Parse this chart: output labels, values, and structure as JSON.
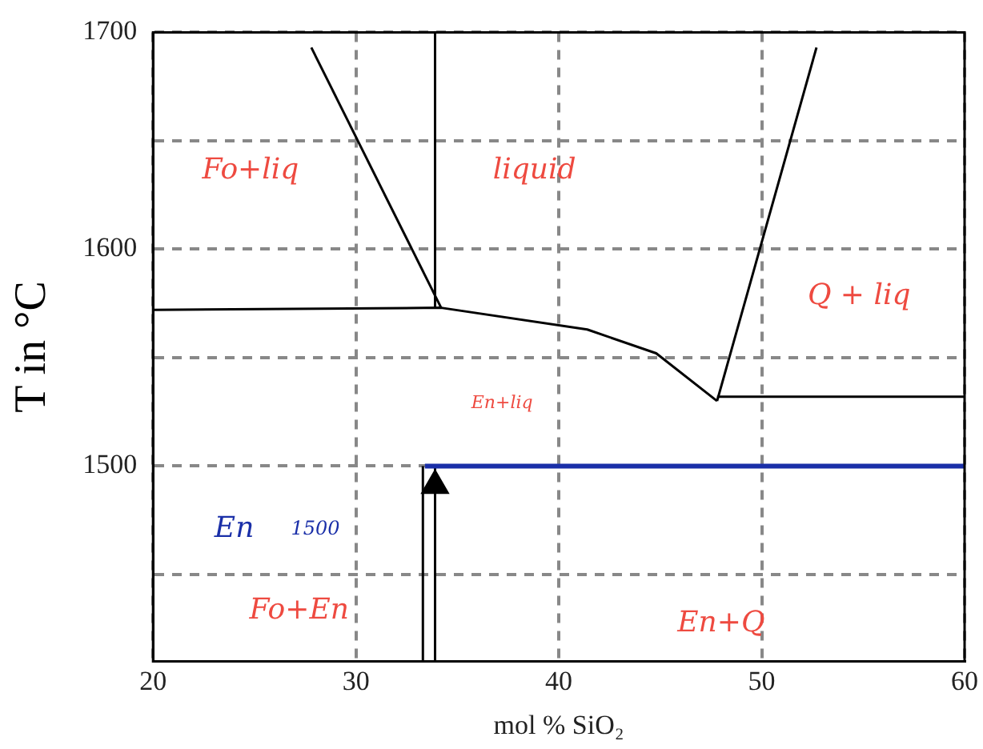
{
  "chart_data": {
    "type": "line",
    "xlabel": "mol % SiO₂",
    "ylabel": "T in °C",
    "xlim": [
      20,
      60
    ],
    "ylim": [
      1410,
      1700
    ],
    "xticks": [
      20,
      30,
      40,
      50,
      60
    ],
    "yticks": [
      {
        "value": 1450,
        "label": null
      },
      1500,
      {
        "value": 1550,
        "label": null
      },
      1600,
      {
        "value": 1650,
        "label": null
      },
      1700
    ],
    "grid": true,
    "legend": false,
    "marker": "none",
    "line_style": "solid",
    "series": [
      {
        "color": "#000000",
        "x": [
          27.8,
          34.2
        ],
        "values": [
          1693,
          1573
        ]
      },
      {
        "color": "#000000",
        "x": [
          33.9,
          33.9
        ],
        "values": [
          1573,
          1700
        ]
      },
      {
        "color": "#000000",
        "x": [
          20,
          34.2,
          41.4,
          44.8,
          47.8
        ],
        "values": [
          1572,
          1573,
          1563,
          1552,
          1530
        ]
      },
      {
        "color": "#000000",
        "x": [
          47.8,
          52.7
        ],
        "values": [
          1530,
          1693
        ]
      },
      {
        "color": "#000000",
        "x": [
          47.8,
          60
        ],
        "values": [
          1532,
          1532
        ]
      },
      {
        "color": "#1a2fa8",
        "x": [
          33.4,
          60
        ],
        "values": [
          1500,
          1500
        ]
      },
      {
        "color": "#000000",
        "x": [
          33.3,
          33.3
        ],
        "values": [
          1410,
          1500
        ]
      },
      {
        "color": "#000000",
        "x": [
          33.9,
          33.9
        ],
        "values": [
          1410,
          1500
        ]
      },
      {
        "type": "scatter",
        "marker": "triangle",
        "color": "#000000",
        "x": [
          33.9
        ],
        "values": [
          1491
        ]
      }
    ],
    "annotations": [
      "Fo+liq",
      "liquid",
      "Q + liq",
      "En+liq",
      "En",
      "1500",
      "Fo+En",
      "En+Q"
    ]
  }
}
